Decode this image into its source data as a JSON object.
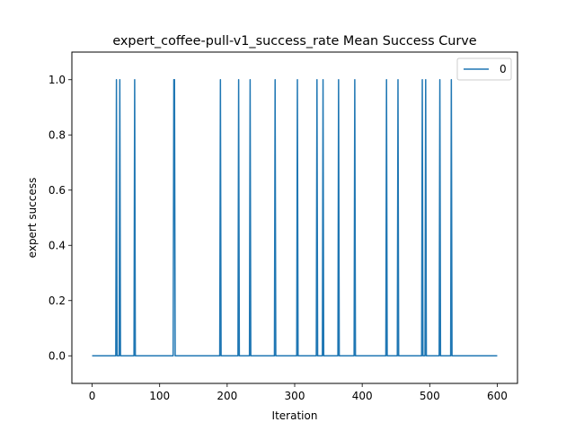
{
  "chart_data": {
    "type": "line",
    "title": "expert_coffee-pull-v1_success_rate Mean Success Curve",
    "xlabel": "Iteration",
    "ylabel": "expert success",
    "xlim": [
      -30,
      630
    ],
    "ylim": [
      -0.1,
      1.1
    ],
    "xticks": [
      0,
      100,
      200,
      300,
      400,
      500,
      600
    ],
    "yticks": [
      0.0,
      0.2,
      0.4,
      0.6,
      0.8,
      1.0
    ],
    "ytick_labels": [
      "0.0",
      "0.2",
      "0.4",
      "0.6",
      "0.8",
      "1.0"
    ],
    "grid": false,
    "legend_position": "top-right",
    "series": [
      {
        "name": "0",
        "color": "#1f77b4",
        "x": [
          0,
          35,
          36,
          37,
          40,
          41,
          42,
          62,
          63,
          64,
          120,
          121,
          122,
          123,
          189,
          190,
          191,
          216,
          217,
          218,
          233,
          234,
          235,
          270,
          271,
          272,
          303,
          304,
          305,
          332,
          333,
          334,
          341,
          342,
          343,
          364,
          365,
          366,
          388,
          389,
          390,
          435,
          436,
          437,
          452,
          453,
          454,
          488,
          489,
          490,
          493,
          494,
          495,
          514,
          515,
          516,
          531,
          532,
          533,
          600
        ],
        "y": [
          0,
          0,
          1,
          0,
          0,
          1,
          0,
          0,
          1,
          0,
          0,
          1,
          1,
          0,
          0,
          1,
          0,
          0,
          1,
          0,
          0,
          1,
          0,
          0,
          1,
          0,
          0,
          1,
          0,
          0,
          1,
          0,
          0,
          1,
          0,
          0,
          1,
          0,
          0,
          1,
          0,
          0,
          1,
          0,
          0,
          1,
          0,
          0,
          1,
          0,
          0,
          1,
          0,
          0,
          1,
          0,
          0,
          1,
          0,
          0
        ]
      }
    ]
  }
}
